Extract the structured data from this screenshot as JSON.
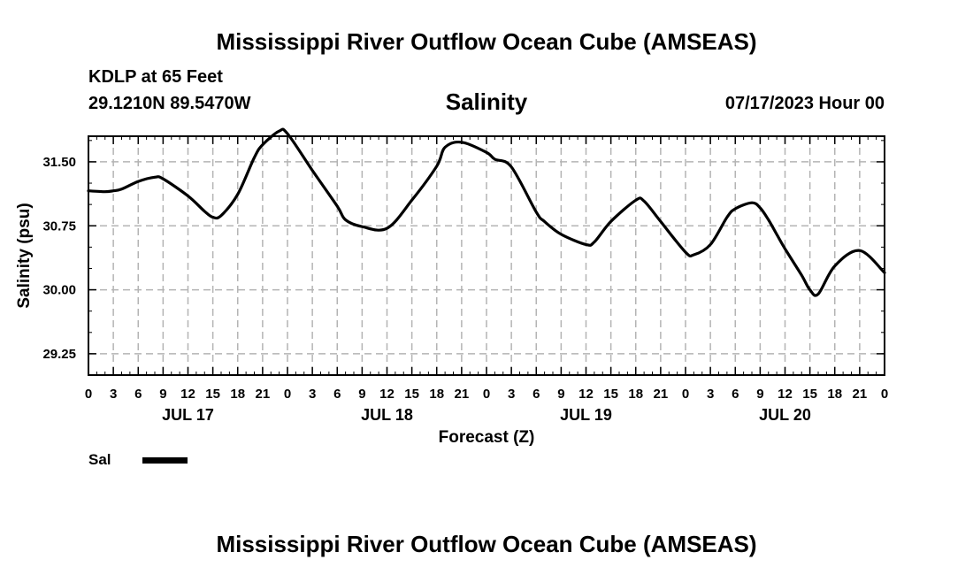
{
  "header": {
    "title": "Mississippi River Outflow Ocean Cube (AMSEAS)",
    "station": "KDLP at 65 Feet",
    "coords": "29.1210N  89.5470W",
    "datetime": "07/17/2023 Hour 00"
  },
  "footer": {
    "title": "Mississippi River Outflow Ocean Cube (AMSEAS)"
  },
  "legend": {
    "label": "Sal",
    "color": "#000000"
  },
  "chart_data": {
    "type": "line",
    "title": "Salinity",
    "xlabel": "Forecast (Z)",
    "ylabel": "Salinity (psu)",
    "xlim": [
      0,
      96
    ],
    "ylim": [
      29.0,
      31.8
    ],
    "grid": true,
    "x_ticks": [
      0,
      3,
      6,
      9,
      12,
      15,
      18,
      21,
      24,
      27,
      30,
      33,
      36,
      39,
      42,
      45,
      48,
      51,
      54,
      57,
      60,
      63,
      66,
      69,
      72,
      75,
      78,
      81,
      84,
      87,
      90,
      93,
      96
    ],
    "x_tick_labels": [
      "0",
      "3",
      "6",
      "9",
      "12",
      "15",
      "18",
      "21",
      "0",
      "3",
      "6",
      "9",
      "12",
      "15",
      "18",
      "21",
      "0",
      "3",
      "6",
      "9",
      "12",
      "15",
      "18",
      "21",
      "0",
      "3",
      "6",
      "9",
      "12",
      "15",
      "18",
      "21",
      "0"
    ],
    "y_ticks": [
      29.25,
      30.0,
      30.75,
      31.5
    ],
    "y_tick_labels": [
      "29.25",
      "30.00",
      "30.75",
      "31.50"
    ],
    "day_labels": [
      {
        "hour": 12,
        "label": "JUL 17"
      },
      {
        "hour": 36,
        "label": "JUL 18"
      },
      {
        "hour": 60,
        "label": "JUL 19"
      },
      {
        "hour": 84,
        "label": "JUL 20"
      }
    ],
    "series": [
      {
        "name": "Sal",
        "x": [
          0,
          2,
          3,
          4,
          6,
          8,
          9,
          12,
          14,
          15,
          16,
          18,
          20,
          21,
          23,
          24,
          27,
          30,
          31,
          33,
          36,
          39,
          42,
          43,
          45,
          48,
          49,
          51,
          54,
          55,
          57,
          60,
          61,
          63,
          66,
          67,
          69,
          72,
          73,
          75,
          77,
          78,
          80,
          81,
          82,
          83,
          84,
          86,
          87,
          88,
          90,
          93,
          96
        ],
        "values": [
          31.16,
          31.15,
          31.16,
          31.18,
          31.27,
          31.32,
          31.3,
          31.1,
          30.92,
          30.85,
          30.87,
          31.12,
          31.55,
          31.7,
          31.86,
          31.83,
          31.4,
          30.98,
          30.82,
          30.74,
          30.72,
          31.05,
          31.45,
          31.67,
          31.73,
          31.61,
          31.53,
          31.44,
          30.91,
          30.8,
          30.65,
          30.53,
          30.56,
          30.8,
          31.05,
          31.04,
          30.8,
          30.44,
          30.41,
          30.53,
          30.85,
          30.95,
          31.02,
          30.96,
          30.82,
          30.65,
          30.48,
          30.17,
          30.0,
          29.95,
          30.28,
          30.46,
          30.2
        ]
      }
    ]
  }
}
